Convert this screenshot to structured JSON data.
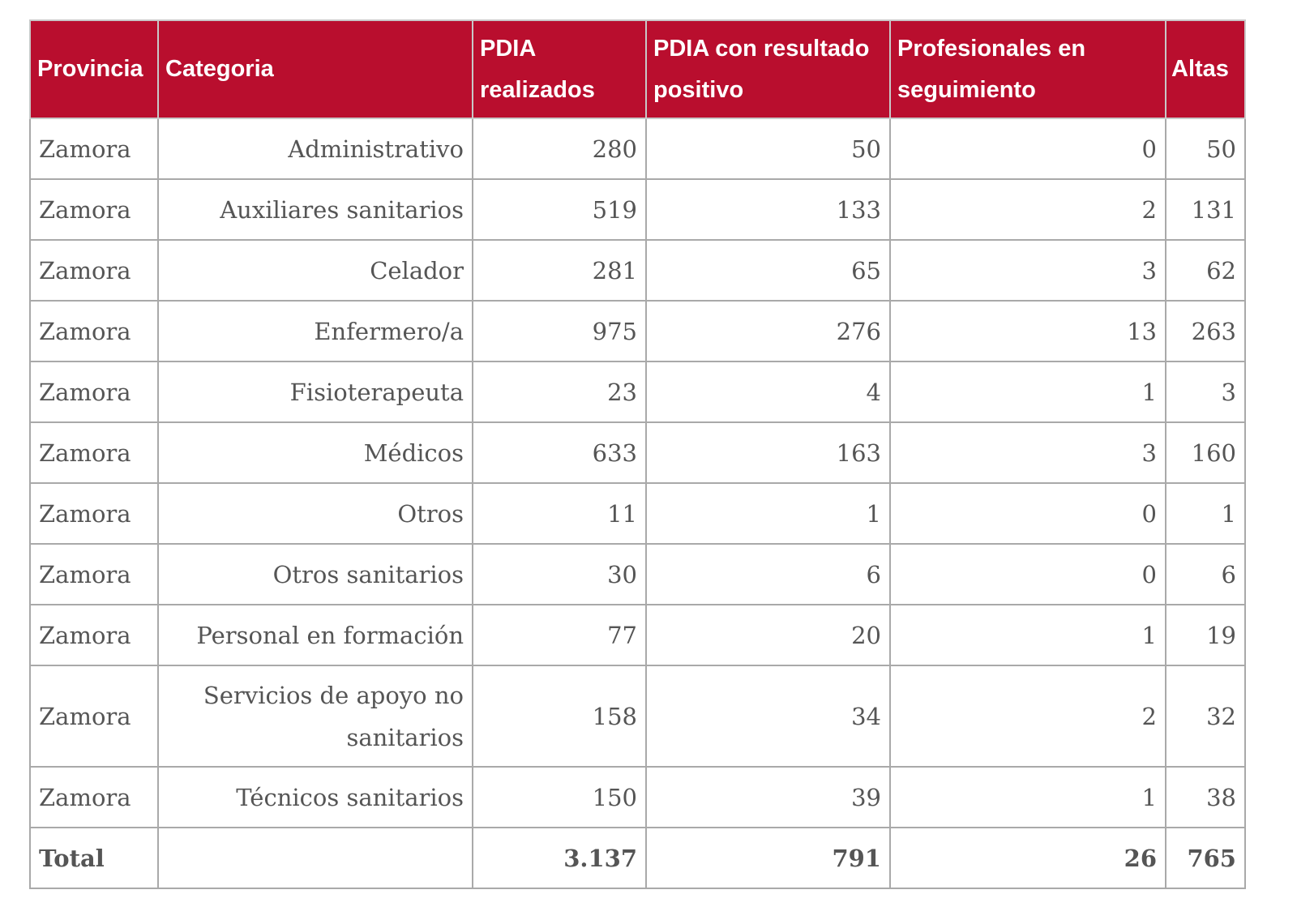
{
  "table": {
    "headers": [
      "Provincia",
      "Categoria",
      "PDIA realizados",
      "PDIA con resultado positivo",
      "Profesionales en seguimiento",
      "Altas"
    ],
    "rows": [
      [
        "Zamora",
        "Administrativo",
        "280",
        "50",
        "0",
        "50"
      ],
      [
        "Zamora",
        "Auxiliares sanitarios",
        "519",
        "133",
        "2",
        "131"
      ],
      [
        "Zamora",
        "Celador",
        "281",
        "65",
        "3",
        "62"
      ],
      [
        "Zamora",
        "Enfermero/a",
        "975",
        "276",
        "13",
        "263"
      ],
      [
        "Zamora",
        "Fisioterapeuta",
        "23",
        "4",
        "1",
        "3"
      ],
      [
        "Zamora",
        "Médicos",
        "633",
        "163",
        "3",
        "160"
      ],
      [
        "Zamora",
        "Otros",
        "11",
        "1",
        "0",
        "1"
      ],
      [
        "Zamora",
        "Otros sanitarios",
        "30",
        "6",
        "0",
        "6"
      ],
      [
        "Zamora",
        "Personal en formación",
        "77",
        "20",
        "1",
        "19"
      ],
      [
        "Zamora",
        "Servicios de apoyo no sanitarios",
        "158",
        "34",
        "2",
        "32"
      ],
      [
        "Zamora",
        "Técnicos sanitarios",
        "150",
        "39",
        "1",
        "38"
      ]
    ],
    "total": [
      "Total",
      "",
      "3.137",
      "791",
      "26",
      "765"
    ]
  },
  "colors": {
    "header_bg": "#b90e2e",
    "header_text": "#ffffff",
    "body_text": "#555555",
    "border": "#a9a9a9"
  }
}
